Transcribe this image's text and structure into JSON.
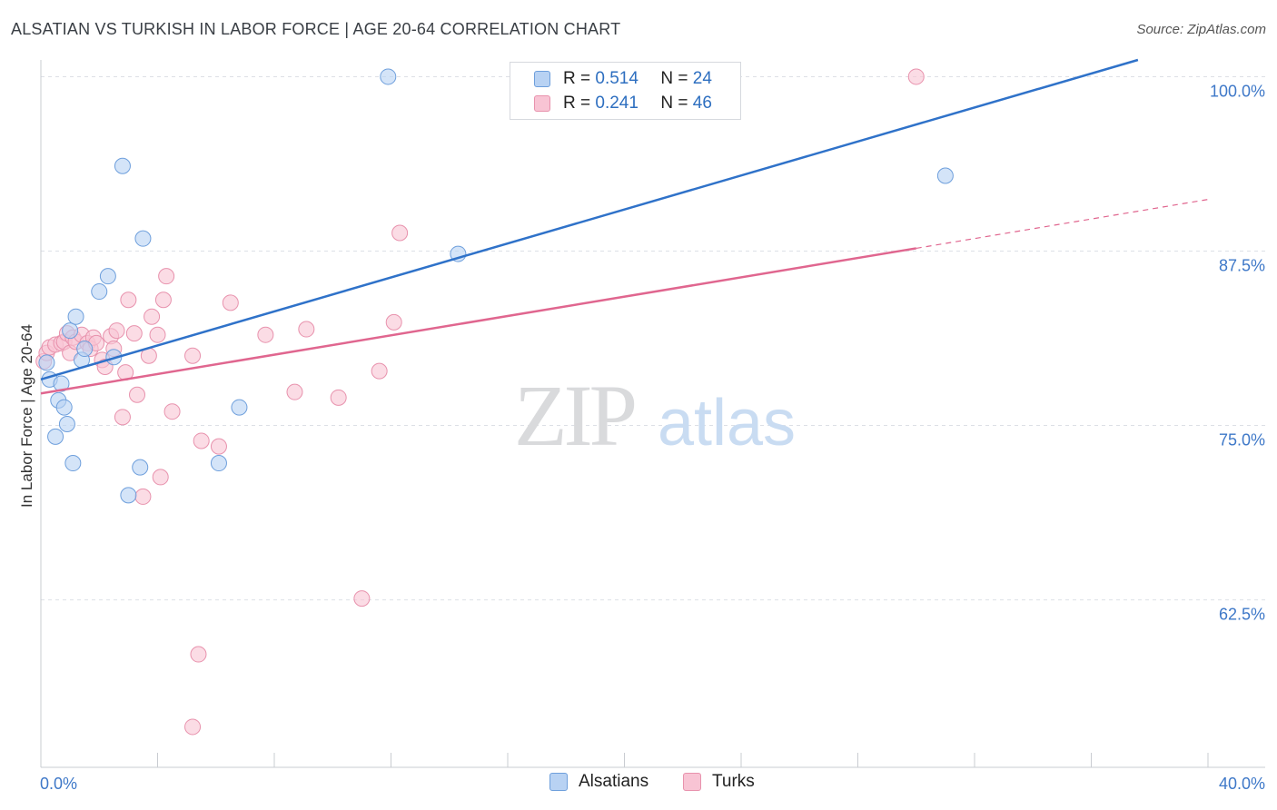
{
  "title": "ALSATIAN VS TURKISH IN LABOR FORCE | AGE 20-64 CORRELATION CHART",
  "source": "Source: ZipAtlas.com",
  "watermark": {
    "zip": "ZIP",
    "atlas": "atlas"
  },
  "colors": {
    "alsatian_fill": "#b8d2f3",
    "alsatian_stroke": "#6e9fdc",
    "alsatian_line": "#2f72c9",
    "turk_fill": "#f8c4d4",
    "turk_stroke": "#e892ad",
    "turk_line": "#e0668f",
    "tick_label": "#3e78c8",
    "grid": "#dde0e6"
  },
  "legend": {
    "rows": [
      {
        "r_label": "R = ",
        "r_value": "0.514",
        "n_label": "N = ",
        "n_value": "24"
      },
      {
        "r_label": "R = ",
        "r_value": "0.241",
        "n_label": "N = ",
        "n_value": "46"
      }
    ],
    "bottom": [
      {
        "label": "Alsatians"
      },
      {
        "label": "Turks"
      }
    ]
  },
  "chart_data": {
    "type": "scatter",
    "xlabel": "",
    "ylabel": "In Labor Force | Age 20-64",
    "xlim": [
      0,
      40
    ],
    "ylim": [
      50.5,
      101.2
    ],
    "x_tick_labels": {
      "left": "0.0%",
      "right": "40.0%"
    },
    "y_ticks": [
      {
        "value": 100,
        "label": "100.0%"
      },
      {
        "value": 87.5,
        "label": "87.5%"
      },
      {
        "value": 75,
        "label": "75.0%"
      },
      {
        "value": 62.5,
        "label": "62.5%"
      }
    ],
    "series": [
      {
        "name": "Alsatians",
        "r": 0.514,
        "n": 24,
        "trend": {
          "x": [
            0,
            37.6
          ],
          "y": [
            78.3,
            101.2
          ]
        },
        "points": [
          [
            0.2,
            79.5
          ],
          [
            0.3,
            78.3
          ],
          [
            0.5,
            74.2
          ],
          [
            0.6,
            76.8
          ],
          [
            0.7,
            78.0
          ],
          [
            0.8,
            76.3
          ],
          [
            0.9,
            75.1
          ],
          [
            1.0,
            81.8
          ],
          [
            1.1,
            72.3
          ],
          [
            1.2,
            82.8
          ],
          [
            1.4,
            79.7
          ],
          [
            1.5,
            80.5
          ],
          [
            2.0,
            84.6
          ],
          [
            2.3,
            85.7
          ],
          [
            2.5,
            79.9
          ],
          [
            2.8,
            93.6
          ],
          [
            3.0,
            70.0
          ],
          [
            3.4,
            72.0
          ],
          [
            3.5,
            88.4
          ],
          [
            6.1,
            72.3
          ],
          [
            6.8,
            76.3
          ],
          [
            11.9,
            100.0
          ],
          [
            14.3,
            87.3
          ],
          [
            31.0,
            92.9
          ]
        ]
      },
      {
        "name": "Turks",
        "r": 0.241,
        "n": 46,
        "trend": {
          "x": [
            0,
            30.0
          ],
          "y": [
            77.3,
            87.7
          ]
        },
        "trend_dashed": {
          "x": [
            30.0,
            40.0
          ],
          "y": [
            87.7,
            91.2
          ]
        },
        "points": [
          [
            0.1,
            79.6
          ],
          [
            0.2,
            80.2
          ],
          [
            0.3,
            80.6
          ],
          [
            0.5,
            80.8
          ],
          [
            0.7,
            80.9
          ],
          [
            0.8,
            81.0
          ],
          [
            0.9,
            81.6
          ],
          [
            1.0,
            80.2
          ],
          [
            1.1,
            81.3
          ],
          [
            1.2,
            81.0
          ],
          [
            1.4,
            81.5
          ],
          [
            1.6,
            80.9
          ],
          [
            1.7,
            80.5
          ],
          [
            1.8,
            81.3
          ],
          [
            1.9,
            80.9
          ],
          [
            2.1,
            79.7
          ],
          [
            2.2,
            79.2
          ],
          [
            2.4,
            81.4
          ],
          [
            2.5,
            80.5
          ],
          [
            2.6,
            81.8
          ],
          [
            2.8,
            75.6
          ],
          [
            2.9,
            78.8
          ],
          [
            3.0,
            84.0
          ],
          [
            3.2,
            81.6
          ],
          [
            3.3,
            77.2
          ],
          [
            3.5,
            69.9
          ],
          [
            3.7,
            80.0
          ],
          [
            3.8,
            82.8
          ],
          [
            4.0,
            81.5
          ],
          [
            4.2,
            84.0
          ],
          [
            4.3,
            85.7
          ],
          [
            4.5,
            76.0
          ],
          [
            5.2,
            80.0
          ],
          [
            5.5,
            73.9
          ],
          [
            6.1,
            73.5
          ],
          [
            6.5,
            83.8
          ],
          [
            7.7,
            81.5
          ],
          [
            8.7,
            77.4
          ],
          [
            9.1,
            81.9
          ],
          [
            10.2,
            77.0
          ],
          [
            11.0,
            62.6
          ],
          [
            11.6,
            78.9
          ],
          [
            12.1,
            82.4
          ],
          [
            12.3,
            88.8
          ],
          [
            30.0,
            100.0
          ],
          [
            5.4,
            58.6
          ]
        ]
      }
    ],
    "extra_turk_points": [
      [
        4.1,
        71.3
      ],
      [
        5.2,
        53.4
      ]
    ]
  }
}
